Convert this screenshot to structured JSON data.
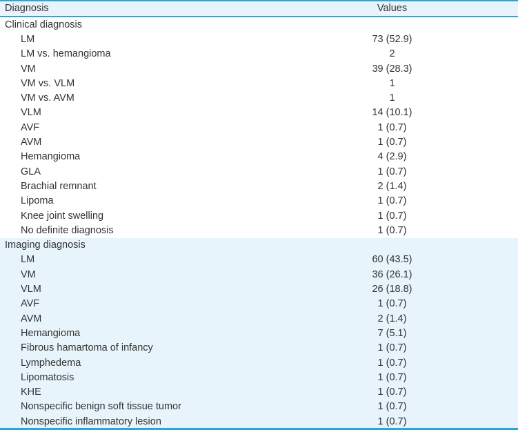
{
  "colors": {
    "accent_border": "#2aa7d9",
    "header_background": "#e8f4fb",
    "highlight_background": "#e8f4fb",
    "text": "#333333"
  },
  "header": {
    "diagnosis": "Diagnosis",
    "values": "Values"
  },
  "sections": [
    {
      "title": "Clinical diagnosis",
      "rows": [
        {
          "label": "LM",
          "value": "73 (52.9)"
        },
        {
          "label": "LM vs. hemangioma",
          "value": "2"
        },
        {
          "label": "VM",
          "value": "39 (28.3)"
        },
        {
          "label": "VM vs. VLM",
          "value": "1"
        },
        {
          "label": "VM vs. AVM",
          "value": "1"
        },
        {
          "label": "VLM",
          "value": "14 (10.1)"
        },
        {
          "label": "AVF",
          "value": "1 (0.7)"
        },
        {
          "label": "AVM",
          "value": "1 (0.7)"
        },
        {
          "label": "Hemangioma",
          "value": "4 (2.9)"
        },
        {
          "label": "GLA",
          "value": "1 (0.7)"
        },
        {
          "label": "Brachial remnant",
          "value": "2 (1.4)"
        },
        {
          "label": "Lipoma",
          "value": "1 (0.7)"
        },
        {
          "label": "Knee joint swelling",
          "value": "1 (0.7)"
        },
        {
          "label": "No definite diagnosis",
          "value": "1 (0.7)"
        }
      ]
    },
    {
      "title": "Imaging diagnosis",
      "rows": [
        {
          "label": "LM",
          "value": "60 (43.5)"
        },
        {
          "label": "VM",
          "value": "36 (26.1)"
        },
        {
          "label": "VLM",
          "value": "26 (18.8)"
        },
        {
          "label": "AVF",
          "value": "1 (0.7)"
        },
        {
          "label": "AVM",
          "value": "2 (1.4)"
        },
        {
          "label": "Hemangioma",
          "value": "7 (5.1)"
        },
        {
          "label": "Fibrous hamartoma of infancy",
          "value": "1 (0.7)"
        },
        {
          "label": "Lymphedema",
          "value": "1 (0.7)"
        },
        {
          "label": "Lipomatosis",
          "value": "1 (0.7)"
        },
        {
          "label": "KHE",
          "value": "1 (0.7)"
        },
        {
          "label": "Nonspecific benign soft tissue tumor",
          "value": "1 (0.7)"
        },
        {
          "label": "Nonspecific inflammatory lesion",
          "value": "1 (0.7)"
        }
      ]
    }
  ]
}
